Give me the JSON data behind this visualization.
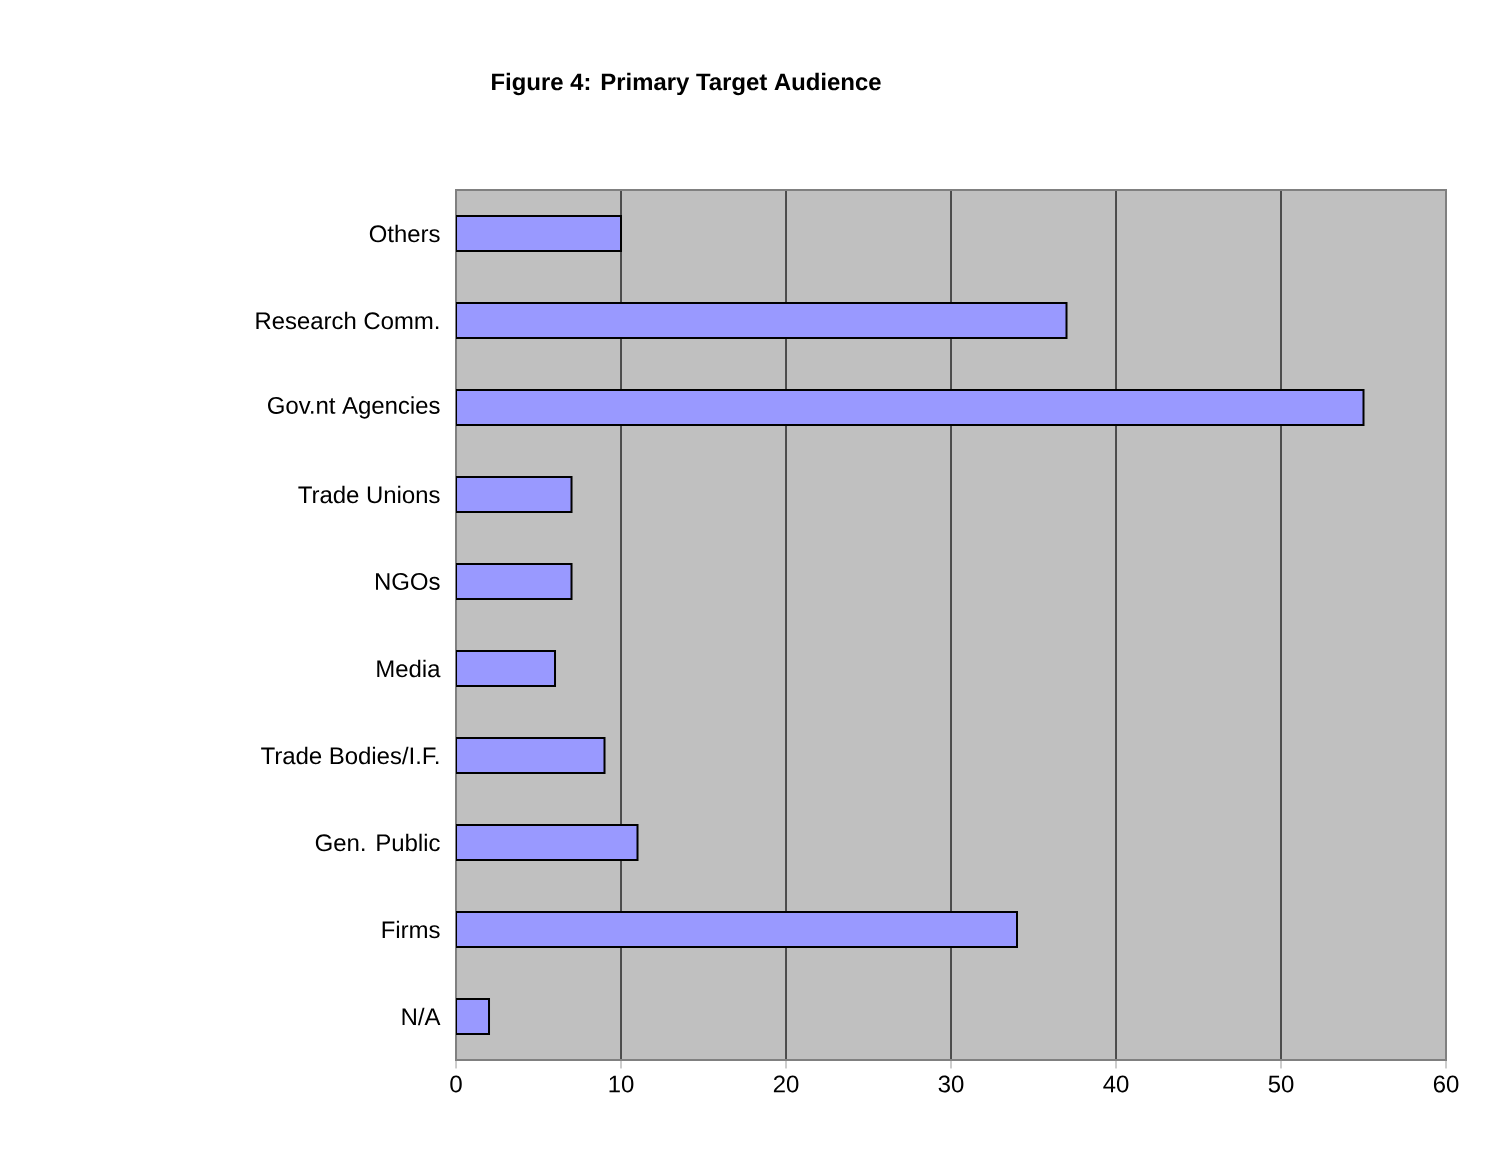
{
  "chart_data": {
    "type": "bar",
    "orientation": "horizontal",
    "title": "Figure 4: Primary Target Audience",
    "categories": [
      "Others",
      "Research Comm.",
      "Gov.nt Agencies",
      "Trade Unions",
      "NGOs",
      "Media",
      "Trade Bodies/I.F.",
      "Gen. Public",
      "Firms",
      "N/A"
    ],
    "values": [
      10,
      37,
      55,
      7,
      7,
      6,
      9,
      11,
      34,
      2
    ],
    "color": "#9999ff",
    "xlim": [
      0,
      60
    ],
    "xticks": [
      0,
      10,
      20,
      30,
      40,
      50,
      60
    ],
    "grid": "x"
  }
}
